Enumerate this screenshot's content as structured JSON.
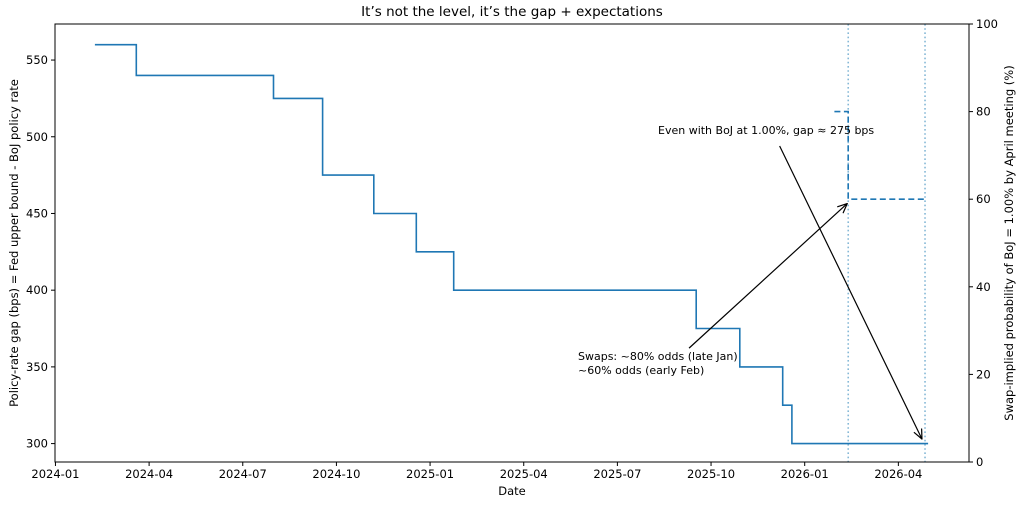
{
  "chart_data": {
    "type": "line",
    "title": "It’s not the level, it’s the gap + expectations",
    "x_axis": {
      "label": "Date",
      "ticks": [
        "2024-01",
        "2024-04",
        "2024-07",
        "2024-10",
        "2025-01",
        "2025-04",
        "2025-07",
        "2025-10",
        "2026-01",
        "2026-04"
      ],
      "range": [
        "2023-12-31",
        "2026-06-09"
      ]
    },
    "y_axis_left": {
      "label": "Policy-rate gap (bps) = Fed upper bound - BoJ policy rate",
      "ticks": [
        300,
        350,
        400,
        450,
        500,
        550
      ],
      "range": [
        288,
        573.5
      ]
    },
    "y_axis_right": {
      "label": "Swap-implied probability of BoJ = 1.00% by April meeting (%)",
      "ticks": [
        0,
        20,
        40,
        60,
        80,
        100
      ],
      "range": [
        0,
        100
      ]
    },
    "grid": false,
    "legend": "none",
    "colors": {
      "line": "#1f77b4",
      "dashed_line": "#1f77b4",
      "dotted_vline": "#85b8d6",
      "arrow": "#000000",
      "axis": "#000000"
    },
    "series": [
      {
        "name": "policy-rate-gap-bps",
        "axis": "left",
        "style": "solid",
        "drawstyle": "steps-post",
        "points": [
          [
            "2024-02-09",
            560
          ],
          [
            "2024-03-19",
            540
          ],
          [
            "2024-07-31",
            525
          ],
          [
            "2024-09-18",
            475
          ],
          [
            "2024-11-07",
            450
          ],
          [
            "2024-12-18",
            425
          ],
          [
            "2025-01-24",
            400
          ],
          [
            "2025-09-17",
            375
          ],
          [
            "2025-10-29",
            350
          ],
          [
            "2025-12-10",
            325
          ],
          [
            "2025-12-19",
            300
          ],
          [
            "2026-04-30",
            300
          ]
        ]
      },
      {
        "name": "swap-implied-probability-pct",
        "axis": "right",
        "style": "dashed",
        "drawstyle": "steps-post",
        "points": [
          [
            "2026-01-30",
            80
          ],
          [
            "2026-02-13",
            60
          ],
          [
            "2026-04-27",
            60
          ]
        ]
      }
    ],
    "vlines": [
      {
        "name": "early-feb-marker",
        "x": "2026-02-13",
        "style": "dotted"
      },
      {
        "name": "april-meeting-marker",
        "x": "2026-04-27",
        "style": "dotted"
      }
    ],
    "annotations": [
      {
        "text": "Even with BoJ at 1.00%, gap ≈ 275 bps",
        "arrow": {
          "axis": "left",
          "from": [
            "2025-12-07",
            494
          ],
          "to": [
            "2026-04-24",
            303
          ]
        }
      },
      {
        "text_lines": [
          "Swaps: ~80% odds (late Jan)",
          "~60% odds (early Feb)"
        ],
        "arrow": {
          "axis": "right",
          "from": [
            "2025-09-10",
            26
          ],
          "to": [
            "2026-02-12",
            59
          ]
        }
      }
    ]
  }
}
